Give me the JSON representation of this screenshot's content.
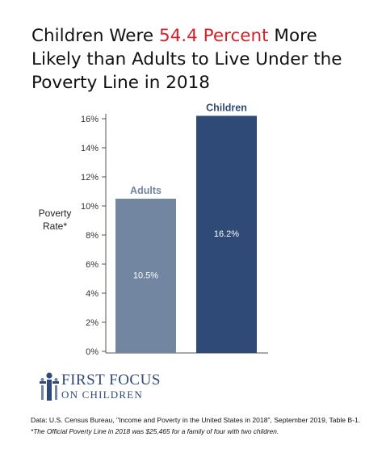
{
  "title": {
    "part1": "Children Were ",
    "highlight": "54.4 Percent",
    "part2": " More Likely than Adults to Live Under the Poverty Line in 2018",
    "highlight_color": "#d2232a"
  },
  "chart_data": {
    "type": "bar",
    "categories": [
      "Adults",
      "Children"
    ],
    "values": [
      10.5,
      16.2
    ],
    "value_labels": [
      "10.5%",
      "16.2%"
    ],
    "colors": [
      "#7285a1",
      "#2f4a76"
    ],
    "ylabel": "Poverty Rate*",
    "ylim": [
      0,
      16
    ],
    "yticks": [
      0,
      2,
      4,
      6,
      8,
      10,
      12,
      14,
      16
    ],
    "ytick_labels": [
      "0%",
      "2%",
      "4%",
      "6%",
      "8%",
      "10%",
      "12%",
      "14%",
      "16%"
    ],
    "grid": false
  },
  "logo": {
    "line1": "First Focus",
    "line2": "on Children"
  },
  "source": "Data: U.S. Census Bureau, \"Income and Poverty in the United States in 2018\",  September 2019, Table B-1.",
  "footnote": "*The Official Poverty Line in 2018 was $25,465 for a family of four with two children."
}
